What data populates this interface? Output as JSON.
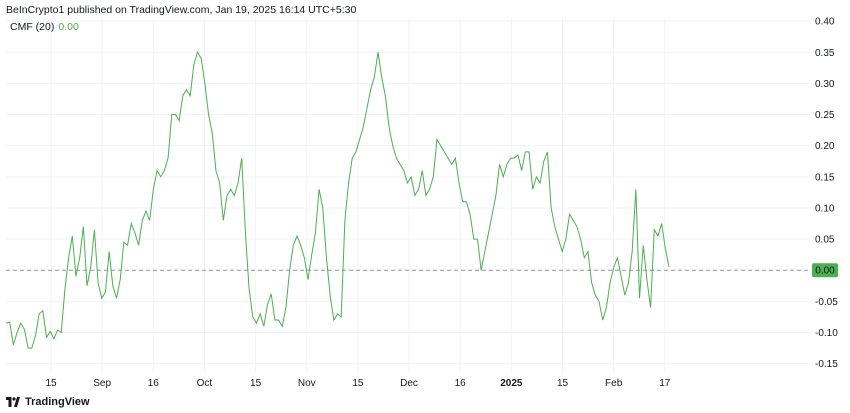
{
  "header": {
    "published": "BeInCrypto1 published on TradingView.com, Jan 19, 2025 16:14 UTC+5:30"
  },
  "legend": {
    "name": "CMF (20)",
    "value": "0.00"
  },
  "footer": {
    "brand": "TradingView",
    "logo_icon": "tradingview-logo-icon"
  },
  "chart_data": {
    "type": "line",
    "series": [
      {
        "name": "CMF (20)",
        "color": "#4caf50",
        "values": [
          -0.085,
          -0.083,
          -0.12,
          -0.1,
          -0.085,
          -0.095,
          -0.125,
          -0.125,
          -0.105,
          -0.07,
          -0.065,
          -0.108,
          -0.098,
          -0.11,
          -0.096,
          -0.1,
          -0.03,
          0.02,
          0.055,
          -0.01,
          0.02,
          0.07,
          -0.025,
          0.005,
          0.065,
          -0.02,
          -0.045,
          -0.035,
          0.03,
          -0.025,
          -0.045,
          -0.015,
          0.045,
          0.04,
          0.075,
          0.06,
          0.04,
          0.08,
          0.095,
          0.08,
          0.13,
          0.16,
          0.15,
          0.16,
          0.18,
          0.25,
          0.25,
          0.24,
          0.28,
          0.29,
          0.28,
          0.33,
          0.35,
          0.34,
          0.3,
          0.25,
          0.22,
          0.16,
          0.14,
          0.08,
          0.12,
          0.13,
          0.12,
          0.14,
          0.18,
          0.06,
          -0.03,
          -0.075,
          -0.085,
          -0.07,
          -0.09,
          -0.055,
          -0.038,
          -0.08,
          -0.08,
          -0.09,
          -0.06,
          0.0,
          0.04,
          0.055,
          0.04,
          0.02,
          -0.015,
          0.025,
          0.06,
          0.13,
          0.1,
          0.02,
          -0.04,
          -0.08,
          -0.07,
          -0.075,
          0.08,
          0.14,
          0.18,
          0.19,
          0.21,
          0.23,
          0.26,
          0.29,
          0.31,
          0.35,
          0.31,
          0.28,
          0.23,
          0.2,
          0.18,
          0.17,
          0.16,
          0.14,
          0.15,
          0.12,
          0.13,
          0.16,
          0.12,
          0.13,
          0.15,
          0.21,
          0.2,
          0.19,
          0.18,
          0.17,
          0.18,
          0.14,
          0.11,
          0.11,
          0.09,
          0.05,
          0.05,
          0.0,
          0.03,
          0.06,
          0.09,
          0.12,
          0.17,
          0.15,
          0.17,
          0.18,
          0.18,
          0.185,
          0.16,
          0.19,
          0.19,
          0.13,
          0.15,
          0.14,
          0.175,
          0.19,
          0.1,
          0.07,
          0.05,
          0.03,
          0.05,
          0.09,
          0.08,
          0.07,
          0.05,
          0.02,
          0.03,
          -0.02,
          -0.04,
          -0.05,
          -0.08,
          -0.06,
          -0.02,
          0.005,
          0.02,
          -0.01,
          -0.04,
          -0.02,
          0.03,
          0.13,
          -0.045,
          0.04,
          -0.015,
          -0.06,
          0.065,
          0.055,
          0.075,
          0.035,
          0.005
        ]
      }
    ],
    "x_ticks": [
      {
        "label": "15",
        "bold": false
      },
      {
        "label": "Sep",
        "bold": false
      },
      {
        "label": "16",
        "bold": false
      },
      {
        "label": "Oct",
        "bold": false
      },
      {
        "label": "15",
        "bold": false
      },
      {
        "label": "Nov",
        "bold": false
      },
      {
        "label": "15",
        "bold": false
      },
      {
        "label": "Dec",
        "bold": false
      },
      {
        "label": "16",
        "bold": false
      },
      {
        "label": "2025",
        "bold": true
      },
      {
        "label": "15",
        "bold": false
      },
      {
        "label": "Feb",
        "bold": false
      },
      {
        "label": "17",
        "bold": false
      }
    ],
    "y_ticks": [
      "0.40",
      "0.35",
      "0.30",
      "0.25",
      "0.20",
      "0.15",
      "0.10",
      "0.05",
      "0.00",
      "-0.05",
      "-0.10",
      "-0.15"
    ],
    "y_tick_values": [
      0.4,
      0.35,
      0.3,
      0.25,
      0.2,
      0.15,
      0.1,
      0.05,
      0.0,
      -0.05,
      -0.1,
      -0.15
    ],
    "ylim": [
      -0.165,
      0.405
    ],
    "zero_line": {
      "value": 0.0,
      "label": "0.00",
      "color": "#4caf50"
    },
    "grid": true
  }
}
